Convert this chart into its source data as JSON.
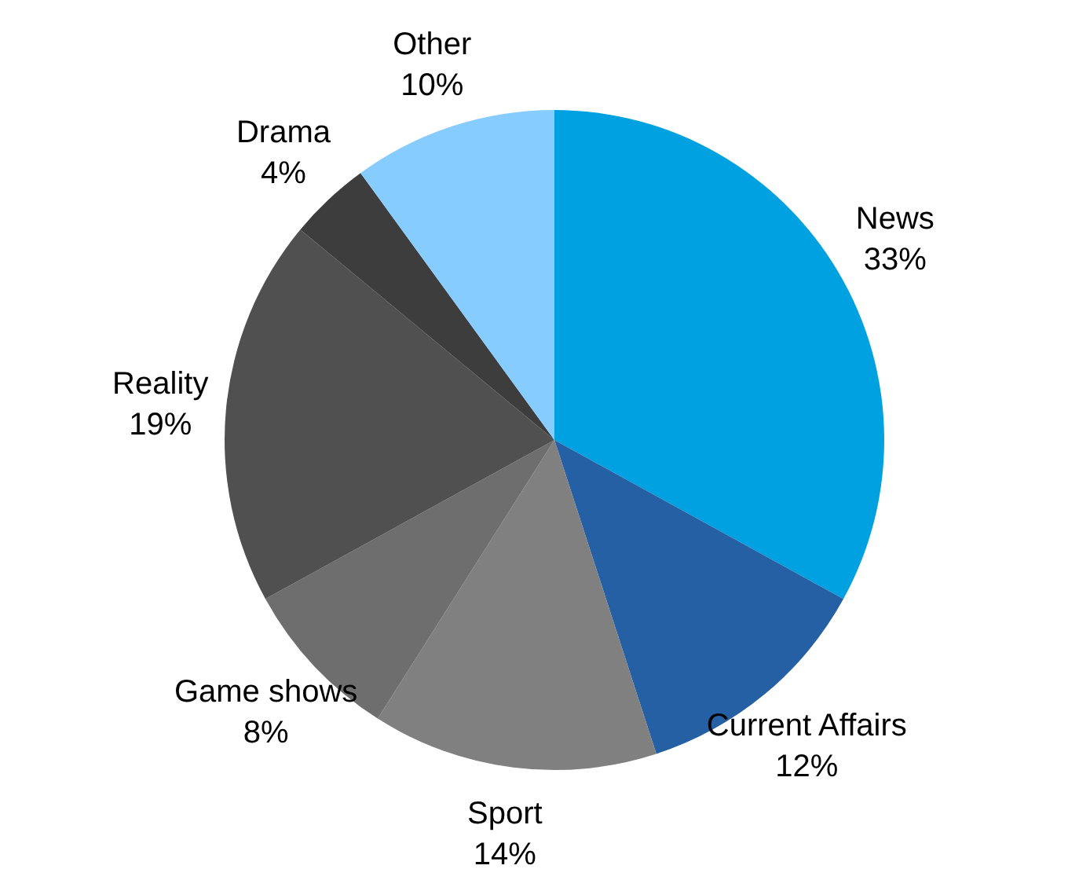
{
  "chart_data": {
    "type": "pie",
    "categories": [
      "News",
      "Current Affairs",
      "Sport",
      "Game shows",
      "Reality",
      "Drama",
      "Other"
    ],
    "values": [
      33,
      12,
      14,
      8,
      19,
      4,
      10
    ],
    "colors": [
      "#00a1e1",
      "#2660a4",
      "#808080",
      "#6e6e6e",
      "#505050",
      "#3d3d3d",
      "#87ccff"
    ],
    "value_labels": [
      "33%",
      "12%",
      "14%",
      "8%",
      "19%",
      "4%",
      "10%"
    ]
  }
}
